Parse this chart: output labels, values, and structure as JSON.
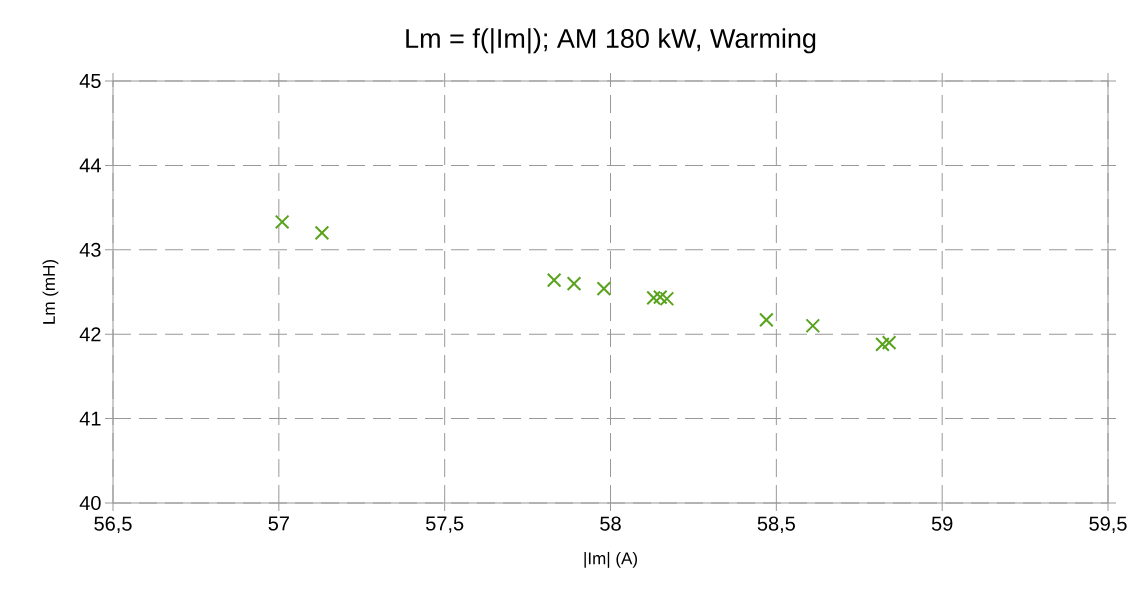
{
  "chart_data": {
    "type": "scatter",
    "title": "Lm = f(|Im|); AM 180 kW, Warming",
    "xlabel": "|Im| (A)",
    "ylabel": "Lm (mH)",
    "x": [
      57.01,
      57.13,
      57.83,
      57.89,
      57.98,
      58.13,
      58.15,
      58.17,
      58.47,
      58.61,
      58.82,
      58.84
    ],
    "series": [
      {
        "color": "#58a21c",
        "values": [
          43.33,
          43.2,
          42.64,
          42.6,
          42.54,
          42.43,
          42.44,
          42.42,
          42.17,
          42.1,
          41.88,
          41.9
        ]
      }
    ],
    "xlim": [
      56.5,
      59.5
    ],
    "ylim": [
      40,
      45
    ],
    "xticks": [
      {
        "value": 56.5,
        "label": "56,5"
      },
      57,
      {
        "value": 57.5,
        "label": "57,5"
      },
      58,
      {
        "value": 58.5,
        "label": "58,5"
      },
      59,
      {
        "value": 59.5,
        "label": "59,5"
      }
    ],
    "yticks": [
      40,
      41,
      42,
      43,
      44,
      45
    ],
    "grid": true,
    "marker": "cross"
  }
}
